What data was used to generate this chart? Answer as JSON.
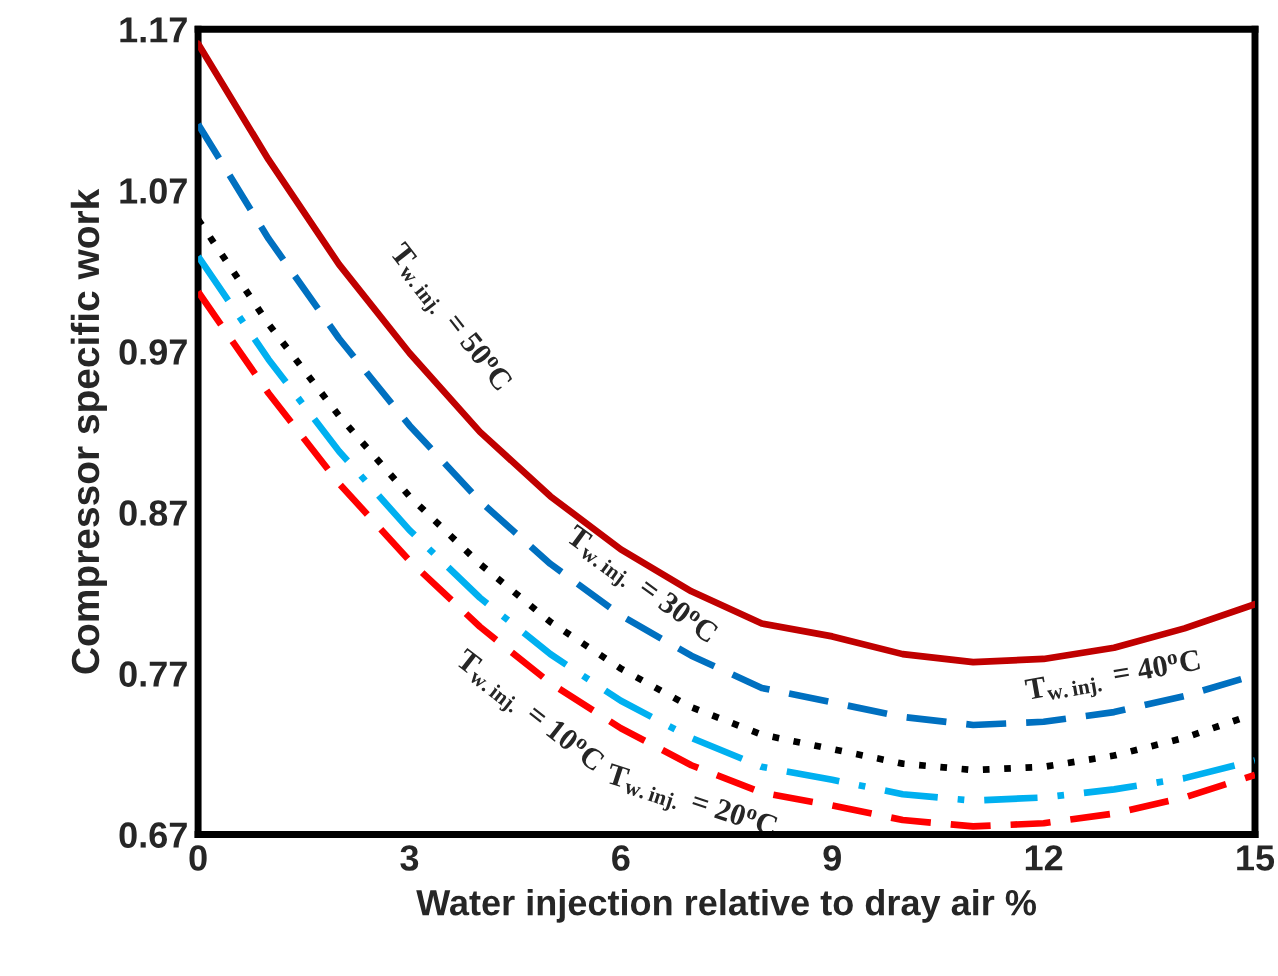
{
  "chart_data": {
    "type": "line",
    "xlabel": "Water injection relative to dray air %",
    "ylabel": "Compressor specific work",
    "x": [
      0,
      1,
      2,
      3,
      4,
      5,
      6,
      7,
      8,
      9,
      10,
      11,
      12,
      13,
      14,
      15
    ],
    "series": [
      {
        "color": "#c00000",
        "line_style": "solid",
        "values": [
          1.161,
          1.089,
          1.024,
          0.969,
          0.92,
          0.88,
          0.847,
          0.821,
          0.801,
          0.793,
          0.782,
          0.777,
          0.779,
          0.786,
          0.798,
          0.813
        ]
      },
      {
        "color": "#0070c0",
        "line_style": "dashed",
        "values": [
          1.111,
          1.04,
          0.978,
          0.924,
          0.877,
          0.838,
          0.806,
          0.781,
          0.761,
          0.752,
          0.743,
          0.738,
          0.74,
          0.746,
          0.756,
          0.769
        ]
      },
      {
        "color": "#000000",
        "line_style": "dotted",
        "values": [
          1.052,
          0.987,
          0.93,
          0.88,
          0.838,
          0.802,
          0.773,
          0.749,
          0.732,
          0.723,
          0.714,
          0.71,
          0.712,
          0.719,
          0.73,
          0.745
        ]
      },
      {
        "color": "#00b0f0",
        "line_style": "dashdot",
        "values": [
          1.029,
          0.965,
          0.908,
          0.859,
          0.817,
          0.782,
          0.753,
          0.73,
          0.712,
          0.704,
          0.695,
          0.691,
          0.693,
          0.698,
          0.705,
          0.716
        ]
      },
      {
        "color": "#ff0000",
        "line_style": "dashed",
        "values": [
          1.007,
          0.944,
          0.888,
          0.84,
          0.799,
          0.764,
          0.736,
          0.713,
          0.696,
          0.688,
          0.679,
          0.675,
          0.677,
          0.683,
          0.693,
          0.707
        ]
      }
    ],
    "xlim": [
      0,
      15
    ],
    "xticks": [
      0,
      3,
      6,
      9,
      12,
      15
    ],
    "ylim": [
      0.67,
      1.17
    ],
    "yticks": [
      {
        "value": 0.67,
        "label": "0.67"
      },
      {
        "value": 0.77,
        "label": "0.77"
      },
      {
        "value": 0.87,
        "label": "0.87"
      },
      {
        "value": 0.97,
        "label": "0.97"
      },
      {
        "value": 1.07,
        "label": "1.07"
      },
      {
        "value": 1.17,
        "label": "1.17"
      }
    ],
    "grid": false,
    "legend": false,
    "marker": "none",
    "annotations": [
      {
        "text": "T$_{w.inj.}$ = 50$^{o}$C",
        "x": 3,
        "y": 0.969
      },
      {
        "text": "T$_{w.inj.}$ = 30$^{o}$C",
        "x": 6,
        "y": 0.806
      },
      {
        "text": "T$_{w.inj.}$ = 10$^{o}$C",
        "x": 5,
        "y": 0.764
      },
      {
        "text": "T$_{w.inj.}$ = 20$^{o}$C",
        "x": 7,
        "y": 0.713
      },
      {
        "text": "T$_{w.inj.}$ = 40$^{o}$C",
        "x": 13,
        "y": 0.746
      }
    ]
  }
}
